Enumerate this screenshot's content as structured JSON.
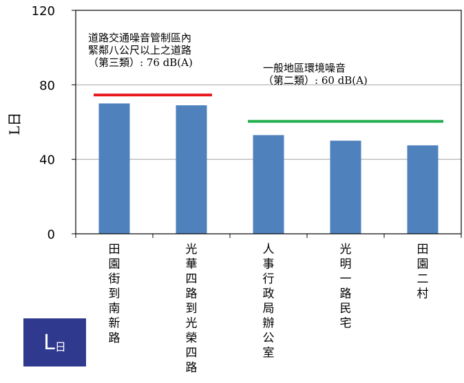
{
  "badge": {
    "main": "L",
    "sub": "日"
  },
  "chart_data": {
    "type": "bar",
    "ylabel": "L日",
    "ylim": [
      0,
      120
    ],
    "yticks": [
      0,
      40,
      80,
      120
    ],
    "grid": true,
    "categories": [
      "田園街到南新路",
      "光華四路到光榮四路",
      "人事行政局辦公室",
      "光明一路民宅",
      "田園二村"
    ],
    "values": [
      70,
      69,
      53,
      50,
      47.5
    ],
    "bar_color": "#4f81bd",
    "reference_lines": [
      {
        "label_lines": [
          "道路交通噪音管制區內",
          "緊鄰八公尺以上之道路",
          "（第三類）: 76 dB(A)"
        ],
        "value": 76,
        "color": "#e8191d",
        "from_category": 0,
        "to_category": 1
      },
      {
        "label_lines": [
          "一般地區環境噪音",
          "（第二類）: 60 dB(A)"
        ],
        "value": 60,
        "color": "#1fad4b",
        "from_category": 2,
        "to_category": 4
      }
    ]
  }
}
